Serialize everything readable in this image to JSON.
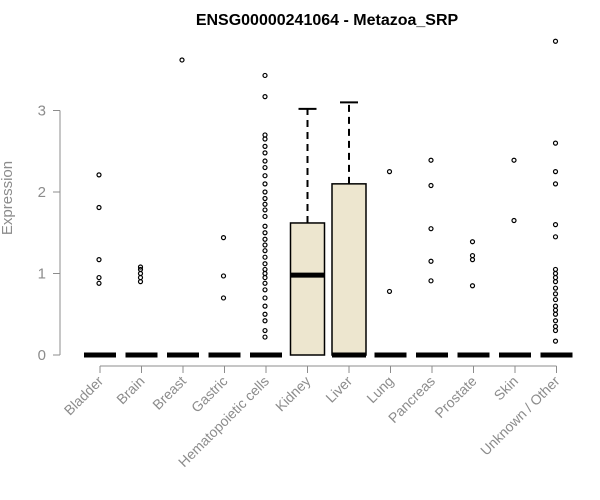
{
  "chart_data": {
    "type": "boxplot",
    "title": "ENSG00000241064 - Metazoa_SRP",
    "xlabel": "",
    "ylabel": "Expression",
    "ylim": [
      0,
      3.95
    ],
    "yticks": [
      0,
      1,
      2,
      3
    ],
    "box_fill": "#ede6cf",
    "categories": [
      "Bladder",
      "Brain",
      "Breast",
      "Gastric",
      "Hematopoietic cells",
      "Kidney",
      "Liver",
      "Lung",
      "Pancreas",
      "Prostate",
      "Skin",
      "Unknown / Other"
    ],
    "boxes": [
      {
        "min": 0,
        "q1": 0,
        "median": 0,
        "q3": 0,
        "max": 0
      },
      {
        "min": 0,
        "q1": 0,
        "median": 0,
        "q3": 0,
        "max": 0
      },
      {
        "min": 0,
        "q1": 0,
        "median": 0,
        "q3": 0,
        "max": 0
      },
      {
        "min": 0,
        "q1": 0,
        "median": 0,
        "q3": 0,
        "max": 0
      },
      {
        "min": 0,
        "q1": 0,
        "median": 0,
        "q3": 0,
        "max": 0
      },
      {
        "min": 0,
        "q1": 0,
        "median": 0.98,
        "q3": 1.62,
        "max": 3.02
      },
      {
        "min": 0,
        "q1": 0,
        "median": 0,
        "q3": 2.1,
        "max": 3.1
      },
      {
        "min": 0,
        "q1": 0,
        "median": 0,
        "q3": 0,
        "max": 0
      },
      {
        "min": 0,
        "q1": 0,
        "median": 0,
        "q3": 0,
        "max": 0
      },
      {
        "min": 0,
        "q1": 0,
        "median": 0,
        "q3": 0,
        "max": 0
      },
      {
        "min": 0,
        "q1": 0,
        "median": 0,
        "q3": 0,
        "max": 0
      },
      {
        "min": 0,
        "q1": 0,
        "median": 0,
        "q3": 0,
        "max": 0
      }
    ],
    "outliers": [
      [
        0.88,
        0.95,
        1.17,
        1.81,
        2.21
      ],
      [
        0.9,
        0.95,
        1.0,
        1.05,
        1.08
      ],
      [
        3.62
      ],
      [
        0.7,
        0.97,
        1.44
      ],
      [
        0.22,
        0.3,
        0.42,
        0.5,
        0.6,
        0.7,
        0.8,
        0.88,
        0.95,
        1.0,
        1.05,
        1.12,
        1.2,
        1.28,
        1.35,
        1.42,
        1.5,
        1.58,
        1.7,
        1.78,
        1.85,
        1.92,
        2.0,
        2.1,
        2.2,
        2.3,
        2.38,
        2.48,
        2.56,
        2.65,
        2.7,
        3.17,
        3.43
      ],
      [],
      [],
      [
        0.78,
        2.25
      ],
      [
        0.91,
        1.15,
        1.55,
        2.08,
        2.39
      ],
      [
        0.85,
        1.17,
        1.22,
        1.39
      ],
      [
        1.65,
        2.39
      ],
      [
        0.17,
        0.3,
        0.35,
        0.42,
        0.5,
        0.55,
        0.6,
        0.68,
        0.75,
        0.82,
        0.9,
        0.95,
        1.0,
        1.05,
        1.45,
        1.6,
        2.1,
        2.25,
        2.6,
        3.85
      ]
    ],
    "grid": false,
    "legend": "none"
  }
}
